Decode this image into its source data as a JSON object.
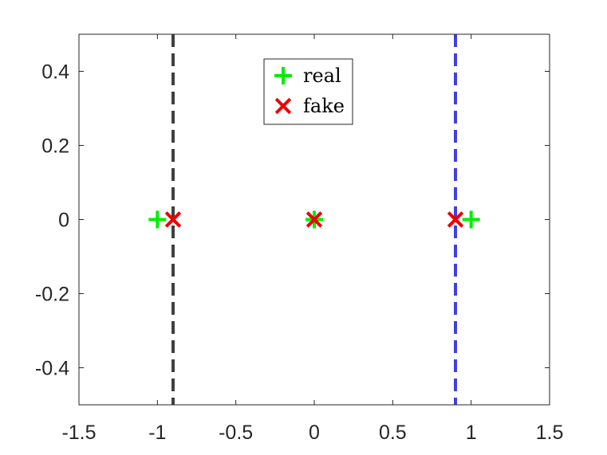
{
  "chart_data": {
    "type": "scatter",
    "xlim": [
      -1.5,
      1.5
    ],
    "ylim": [
      -0.5,
      0.5
    ],
    "x_ticks": [
      -1.5,
      -1,
      -0.5,
      0,
      0.5,
      1,
      1.5
    ],
    "y_ticks": [
      -0.4,
      -0.2,
      0,
      0.2,
      0.4
    ],
    "x_tick_labels": [
      "-1.5",
      "-1",
      "-0.5",
      "0",
      "0.5",
      "1",
      "1.5"
    ],
    "y_tick_labels": [
      "-0.4",
      "-0.2",
      "0",
      "0.2",
      "0.4"
    ],
    "grid": false,
    "legend_position": "top-center",
    "series": [
      {
        "name": "real",
        "marker": "plus",
        "color": "#00ee00",
        "points": [
          [
            -1,
            0
          ],
          [
            0,
            0
          ],
          [
            1,
            0
          ]
        ]
      },
      {
        "name": "fake",
        "marker": "x",
        "color": "#ee0000",
        "points": [
          [
            -0.9,
            0
          ],
          [
            0,
            0
          ],
          [
            0.9,
            0
          ]
        ]
      }
    ],
    "vertical_lines": [
      {
        "x": -0.9,
        "color": "#404040",
        "style": "dashed"
      },
      {
        "x": 0.9,
        "color": "#4040e0",
        "style": "dashed"
      }
    ]
  }
}
